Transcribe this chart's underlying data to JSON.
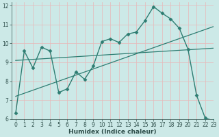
{
  "xlabel": "Humidex (Indice chaleur)",
  "xlim": [
    -0.5,
    23
  ],
  "ylim": [
    6,
    12.2
  ],
  "yticks": [
    6,
    7,
    8,
    9,
    10,
    11,
    12
  ],
  "xticks": [
    0,
    1,
    2,
    3,
    4,
    5,
    6,
    7,
    8,
    9,
    10,
    11,
    12,
    13,
    14,
    15,
    16,
    17,
    18,
    19,
    20,
    21,
    22,
    23
  ],
  "bg_color": "#cce9e7",
  "grid_color": "#b0d5d3",
  "line_color": "#2e7d72",
  "series": [
    {
      "x": [
        0,
        1,
        2,
        3,
        4,
        5,
        6,
        7,
        8,
        9,
        10,
        11,
        12,
        13,
        14,
        15,
        16,
        17,
        18,
        19,
        20,
        21,
        22,
        23
      ],
      "y": [
        6.3,
        9.6,
        8.7,
        9.8,
        9.6,
        7.4,
        7.6,
        8.5,
        8.1,
        8.8,
        10.1,
        10.25,
        10.05,
        10.5,
        10.6,
        11.2,
        11.95,
        11.6,
        11.3,
        10.8,
        9.7,
        7.25,
        6.05,
        5.9
      ],
      "marker": "D",
      "markersize": 2.5,
      "linewidth": 1.0,
      "linestyle": "-"
    },
    {
      "x": [
        0,
        23
      ],
      "y": [
        9.1,
        9.75
      ],
      "marker": null,
      "linewidth": 0.9,
      "linestyle": "-"
    },
    {
      "x": [
        0,
        23
      ],
      "y": [
        7.2,
        10.9
      ],
      "marker": null,
      "linewidth": 0.9,
      "linestyle": "-"
    }
  ]
}
